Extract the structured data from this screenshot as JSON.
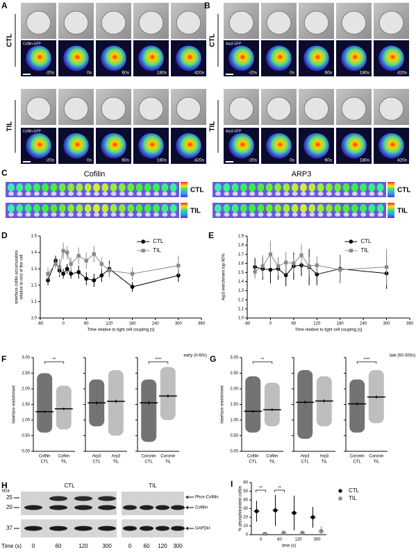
{
  "panel_a": {
    "letter": "A",
    "rows": [
      {
        "label": "CTL",
        "marker": "Cofilin-GFP",
        "times": [
          "-20s",
          "0s",
          "60s",
          "180s",
          "420s"
        ]
      },
      {
        "label": "TIL",
        "marker": "Cofilin-GFP",
        "times": [
          "-20s",
          "0s",
          "60s",
          "180s",
          "420s"
        ]
      }
    ]
  },
  "panel_b": {
    "letter": "B",
    "rows": [
      {
        "label": "CTL",
        "marker": "Arp3-GFP",
        "times": [
          "-20s",
          "0s",
          "60s",
          "180s",
          "420s"
        ]
      },
      {
        "label": "TIL",
        "marker": "Arp3-GFP",
        "times": [
          "-20s",
          "0s",
          "60s",
          "180s",
          "420s"
        ]
      }
    ]
  },
  "panel_c": {
    "letter": "C",
    "titles": [
      "Cofilin",
      "ARP3"
    ],
    "rows": [
      "CTL",
      "TIL"
    ]
  },
  "panel_h": {
    "letter": "H",
    "kda": "kDa",
    "markers": [
      "25",
      "20",
      "37"
    ],
    "groups": [
      "CTL",
      "TIL"
    ],
    "bands": [
      "Phos-Cofillin",
      "Cofillin",
      "GAPDH"
    ],
    "time_label": "Time (s)",
    "lanes": [
      "0",
      "60",
      "120",
      "300"
    ]
  },
  "chart_data": [
    {
      "type": "line",
      "letter": "D",
      "ylabel": [
        "Interface cofilin accumulation",
        "relative to rest of the cell"
      ],
      "xlabel": "Time relative to tight cell coupling [s]",
      "xlim": [
        -60,
        360
      ],
      "xticks": [
        -60,
        0,
        60,
        120,
        180,
        240,
        300,
        360
      ],
      "ylim": [
        1.0,
        1.5
      ],
      "yticks": [
        {
          "value": 1,
          "label": "1.0"
        },
        1.1,
        1.2,
        1.3,
        1.4,
        1.5
      ],
      "x": [
        -40,
        -20,
        -10,
        0,
        10,
        20,
        40,
        60,
        80,
        100,
        120,
        180,
        300
      ],
      "series": [
        {
          "name": "CTL",
          "color": "#000000",
          "marker": "circle",
          "values": [
            1.23,
            1.35,
            1.29,
            1.27,
            1.3,
            1.27,
            1.28,
            1.24,
            1.23,
            1.26,
            1.3,
            1.19,
            1.26
          ],
          "errors": [
            0.03,
            0.03,
            0.04,
            0.03,
            0.03,
            0.03,
            0.04,
            0.04,
            0.04,
            0.04,
            0.05,
            0.03,
            0.04
          ]
        },
        {
          "name": "TIL",
          "color": "#888888",
          "marker": "square",
          "values": [
            1.27,
            1.33,
            1.31,
            1.41,
            1.4,
            1.33,
            1.38,
            1.35,
            1.39,
            1.33,
            1.29,
            1.27,
            1.32
          ],
          "errors": [
            0.04,
            0.03,
            0.05,
            0.05,
            0.04,
            0.04,
            0.05,
            0.05,
            0.05,
            0.04,
            0.04,
            0.04,
            0.06
          ]
        }
      ]
    },
    {
      "type": "line",
      "letter": "E",
      "ylabel": [
        "Arp3 enrichment top 90%"
      ],
      "xlabel": "Time relative to tight cell coupling [s]",
      "xlim": [
        -60,
        360
      ],
      "xticks": [
        -60,
        0,
        60,
        120,
        180,
        240,
        300,
        360
      ],
      "ylim": [
        1.0,
        1.9
      ],
      "yticks": [
        {
          "value": 1,
          "label": "1.0"
        },
        1.1,
        1.2,
        1.3,
        1.4,
        1.5,
        1.6,
        1.7,
        1.8,
        1.9
      ],
      "x": [
        -40,
        -20,
        0,
        20,
        40,
        60,
        80,
        100,
        120,
        180,
        300
      ],
      "series": [
        {
          "name": "CTL",
          "color": "#000000",
          "marker": "circle",
          "values": [
            1.56,
            1.54,
            1.53,
            1.54,
            1.47,
            1.57,
            1.58,
            1.56,
            1.48,
            1.54,
            1.49
          ],
          "errors": [
            0.1,
            0.12,
            0.15,
            0.12,
            0.12,
            0.15,
            0.12,
            0.2,
            0.12,
            0.15,
            0.17
          ]
        },
        {
          "name": "TIL",
          "color": "#888888",
          "marker": "square",
          "values": [
            1.51,
            1.57,
            1.7,
            1.57,
            1.61,
            1.6,
            1.69,
            1.57,
            1.58,
            1.53,
            1.56
          ],
          "errors": [
            0.08,
            0.12,
            0.15,
            0.1,
            0.12,
            0.1,
            0.12,
            0.1,
            0.1,
            0.15,
            0.2
          ]
        }
      ]
    },
    {
      "type": "dot",
      "letter": "F",
      "ylabel": "Interface enrichment",
      "annotation": "early (0-60s)",
      "colors": [
        "#000000",
        "#888888"
      ],
      "ylim": [
        0,
        3
      ],
      "yticks": [
        {
          "value": 0,
          "label": "0.00"
        },
        {
          "value": 0.5,
          "label": "0.50"
        },
        {
          "value": 1,
          "label": "1.00"
        },
        {
          "value": 1.5,
          "label": "1.50"
        },
        {
          "value": 2,
          "label": "2.00"
        },
        {
          "value": 2.5,
          "label": "2.50"
        },
        {
          "value": 3,
          "label": "3.00"
        }
      ],
      "groups": [
        {
          "categories": [
            [
              "Cofilin",
              "CTL"
            ],
            [
              "Cofilin",
              "TIL"
            ]
          ],
          "values": [
            1.27,
            1.36
          ],
          "errors": [
            0.04,
            0.04
          ],
          "min": [
            0.6,
            0.7
          ],
          "max": [
            2.5,
            2.1
          ],
          "significance": "**"
        },
        {
          "categories": [
            [
              "Arp3",
              "CTL"
            ],
            [
              "Arp3",
              "TIL"
            ]
          ],
          "values": [
            1.55,
            1.6
          ],
          "errors": [
            0.05,
            0.05
          ],
          "min": [
            0.8,
            0.5
          ],
          "max": [
            2.3,
            2.6
          ]
        },
        {
          "categories": [
            [
              "Coronin",
              "CTL"
            ],
            [
              "Coronin",
              "TIL"
            ]
          ],
          "values": [
            1.55,
            1.77
          ],
          "errors": [
            0.05,
            0.05
          ],
          "min": [
            0.3,
            1.0
          ],
          "max": [
            2.3,
            2.7
          ],
          "significance": "****"
        }
      ]
    },
    {
      "type": "dot",
      "letter": "G",
      "ylabel": "Interface enrichment",
      "annotation": "late (60-300s)",
      "colors": [
        "#000000",
        "#888888"
      ],
      "ylim": [
        0,
        3
      ],
      "yticks": [
        {
          "value": 0,
          "label": "0.00"
        },
        {
          "value": 0.5,
          "label": "0.50"
        },
        {
          "value": 1,
          "label": "1.00"
        },
        {
          "value": 1.5,
          "label": "1.50"
        },
        {
          "value": 2,
          "label": "2.00"
        },
        {
          "value": 2.5,
          "label": "2.50"
        },
        {
          "value": 3,
          "label": "3.00"
        }
      ],
      "groups": [
        {
          "categories": [
            [
              "Cofilin",
              "CTL"
            ],
            [
              "Cofilin",
              "TIL"
            ]
          ],
          "values": [
            1.28,
            1.33
          ],
          "errors": [
            0.04,
            0.04
          ],
          "min": [
            0.6,
            0.8
          ],
          "max": [
            2.4,
            2.2
          ],
          "significance": "**"
        },
        {
          "categories": [
            [
              "Arp3",
              "CTL"
            ],
            [
              "Arp3",
              "TIL"
            ]
          ],
          "values": [
            1.57,
            1.61
          ],
          "errors": [
            0.05,
            0.05
          ],
          "min": [
            0.4,
            0.8
          ],
          "max": [
            2.6,
            2.4
          ]
        },
        {
          "categories": [
            [
              "Coronin",
              "CTL"
            ],
            [
              "Coronin",
              "TIL"
            ]
          ],
          "values": [
            1.52,
            1.74
          ],
          "errors": [
            0.05,
            0.05
          ],
          "min": [
            0.6,
            0.9
          ],
          "max": [
            2.3,
            2.6
          ],
          "significance": "****"
        }
      ]
    },
    {
      "type": "scatter",
      "letter": "I",
      "ylabel": "% phosphorylated cofilin",
      "xlabel": "time (s)",
      "categories": [
        "0",
        "60",
        "120",
        "300"
      ],
      "ylim": [
        0,
        60
      ],
      "yticks": [
        0,
        10,
        20,
        30,
        40,
        50,
        60
      ],
      "significance": [
        "**",
        "**",
        null,
        null
      ],
      "series": [
        {
          "name": "CTL",
          "color": "#000000",
          "marker": "circle",
          "values": [
            27,
            28,
            25,
            20
          ],
          "errors": [
            12,
            18,
            20,
            12
          ]
        },
        {
          "name": "TIL",
          "color": "#888888",
          "marker": "square",
          "values": [
            1,
            2,
            2,
            4
          ],
          "errors": [
            2,
            3,
            3,
            6
          ]
        }
      ]
    }
  ]
}
